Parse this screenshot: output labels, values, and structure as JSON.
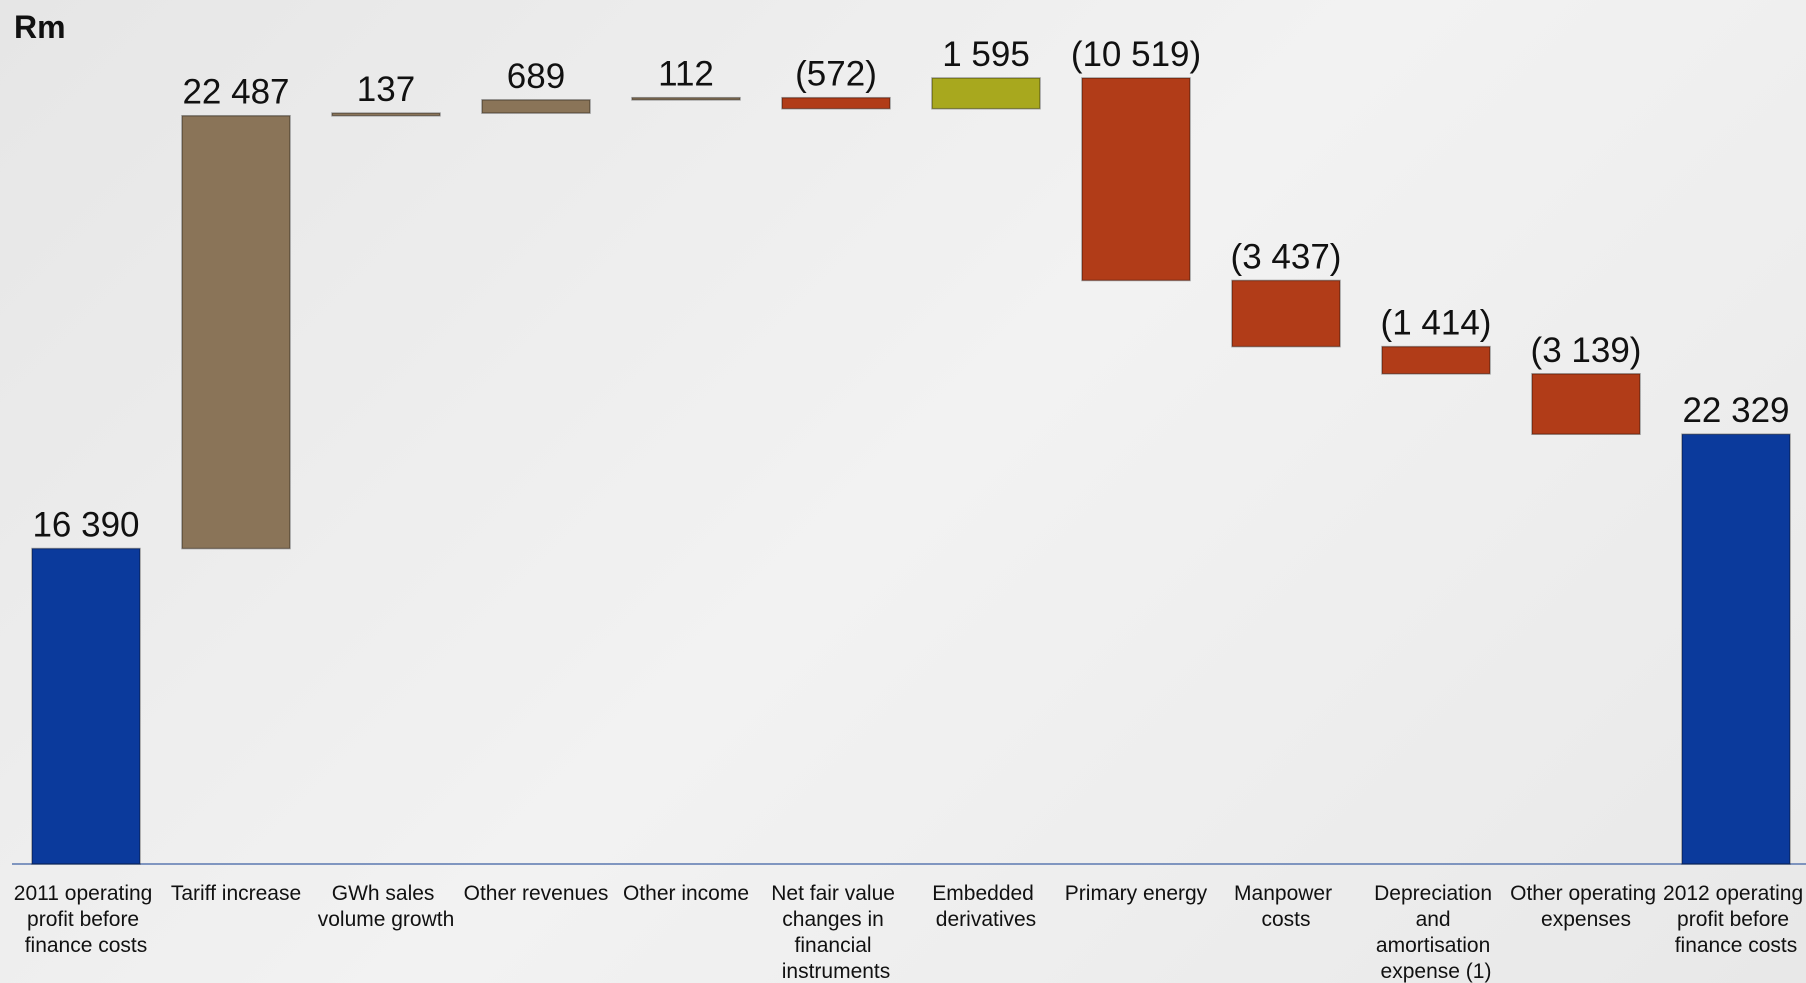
{
  "chart_data": {
    "type": "waterfall",
    "title": "Rm",
    "categories": [
      "2011 operating profit before finance costs",
      "Tariff increase",
      "GWh sales volume growth",
      "Other revenues",
      "Other income",
      "Net fair value changes in financial instruments",
      "Embedded derivatives",
      "Primary energy",
      "Manpower costs",
      "Depreciation and amortisation expense (1)",
      "Other operating expenses",
      "2012 operating profit before finance costs"
    ],
    "values": [
      16390,
      22487,
      137,
      689,
      112,
      -572,
      1595,
      -10519,
      -3437,
      -1414,
      -3139,
      22329
    ],
    "value_labels": [
      "16 390",
      "22 487",
      "137",
      "689",
      "112",
      "(572)",
      "1 595",
      "(10 519)",
      "(3 437)",
      "(1 414)",
      "(3 139)",
      "22 329"
    ],
    "colors": [
      "#0b3a9c",
      "#8a7458",
      "#8a7458",
      "#8a7458",
      "#8a7458",
      "#b13c18",
      "#a8a81e",
      "#b13c18",
      "#b13c18",
      "#b13c18",
      "#b13c18",
      "#0b3a9c"
    ]
  }
}
